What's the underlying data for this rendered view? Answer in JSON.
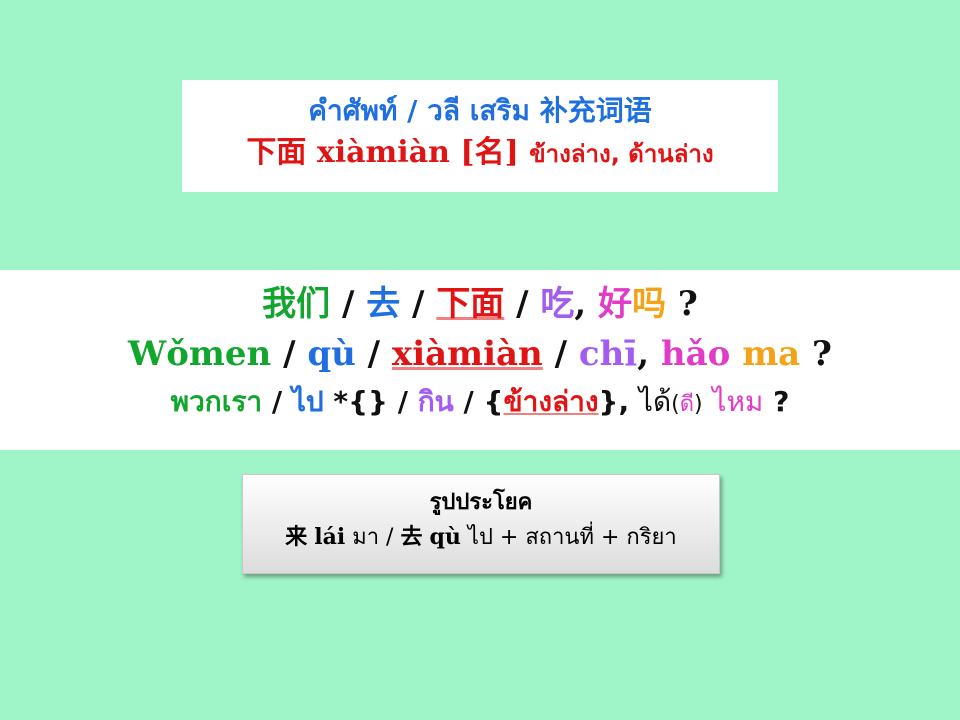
{
  "vocab": {
    "heading_thai": "คำศัพท์ / วลี เสริม",
    "heading_cn": "补充词语",
    "word_cn": "下面",
    "word_pinyin": "xiàmiàn",
    "word_pos": "[名]",
    "word_meaning": "ข้างล่าง, ด้านล่าง"
  },
  "sentence": {
    "cn": {
      "w1": "我们",
      "sep1": " / ",
      "w2": "去",
      "sep2": " / ",
      "w3": "下面",
      "sep3": " / ",
      "w4": "吃",
      "comma": ", ",
      "w5": "好",
      "w6": "吗",
      "q": " ?"
    },
    "pinyin": {
      "w1": "Wǒmen",
      "sep1": " / ",
      "w2": "qù",
      "sep2": " / ",
      "w3": "xiàmiàn",
      "sep3": " / ",
      "w4": "chī",
      "comma": ", ",
      "w5": "hǎo",
      "w6": "ma",
      "q": " ?"
    },
    "thai": {
      "w1": "พวกเรา",
      "sep1": " / ",
      "w2": "ไป",
      "marker": " *{}",
      "sep2": " / ",
      "w4": "กิน",
      "sep3": " / ",
      "brace_open": "{",
      "w3": "ข้างล่าง",
      "brace_close": "}",
      "comma": ", ",
      "w5": "ได้",
      "paren_open": "(",
      "w5b": "ดี",
      "paren_close": ")",
      "w6": "ไหม",
      "q": " ?"
    }
  },
  "pattern": {
    "title": "รูปประโยค",
    "lai_cn": "来",
    "lai_pinyin": "lái",
    "lai_thai": "มา",
    "slash": " / ",
    "qu_cn": "去",
    "qu_pinyin": "qù",
    "qu_thai": "ไป",
    "rest": "+ สถานที่ + กริยา"
  },
  "colors": {
    "background": "#9ff5c7",
    "blue": "#1f6fe0",
    "red": "#e01414",
    "green": "#13a62e",
    "purple": "#a35cf0",
    "pink": "#e03cc8",
    "orange": "#f4a316"
  }
}
